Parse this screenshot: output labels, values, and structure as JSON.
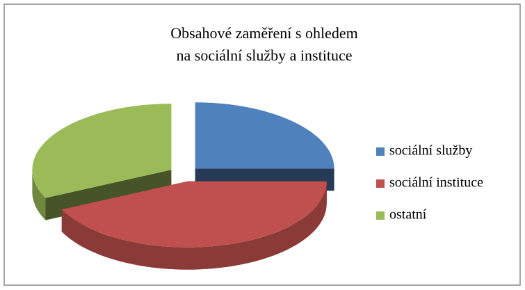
{
  "chart_data": {
    "type": "pie",
    "title": [
      "Obsahové zaměření s ohledem",
      "na sociální služby a instituce"
    ],
    "categories": [
      "sociální služby",
      "sociální instituce",
      "ostatní"
    ],
    "values": [
      25,
      43,
      32
    ],
    "colors": [
      "#4f81bd",
      "#c0504d",
      "#9bbb59"
    ],
    "legend": "right"
  }
}
